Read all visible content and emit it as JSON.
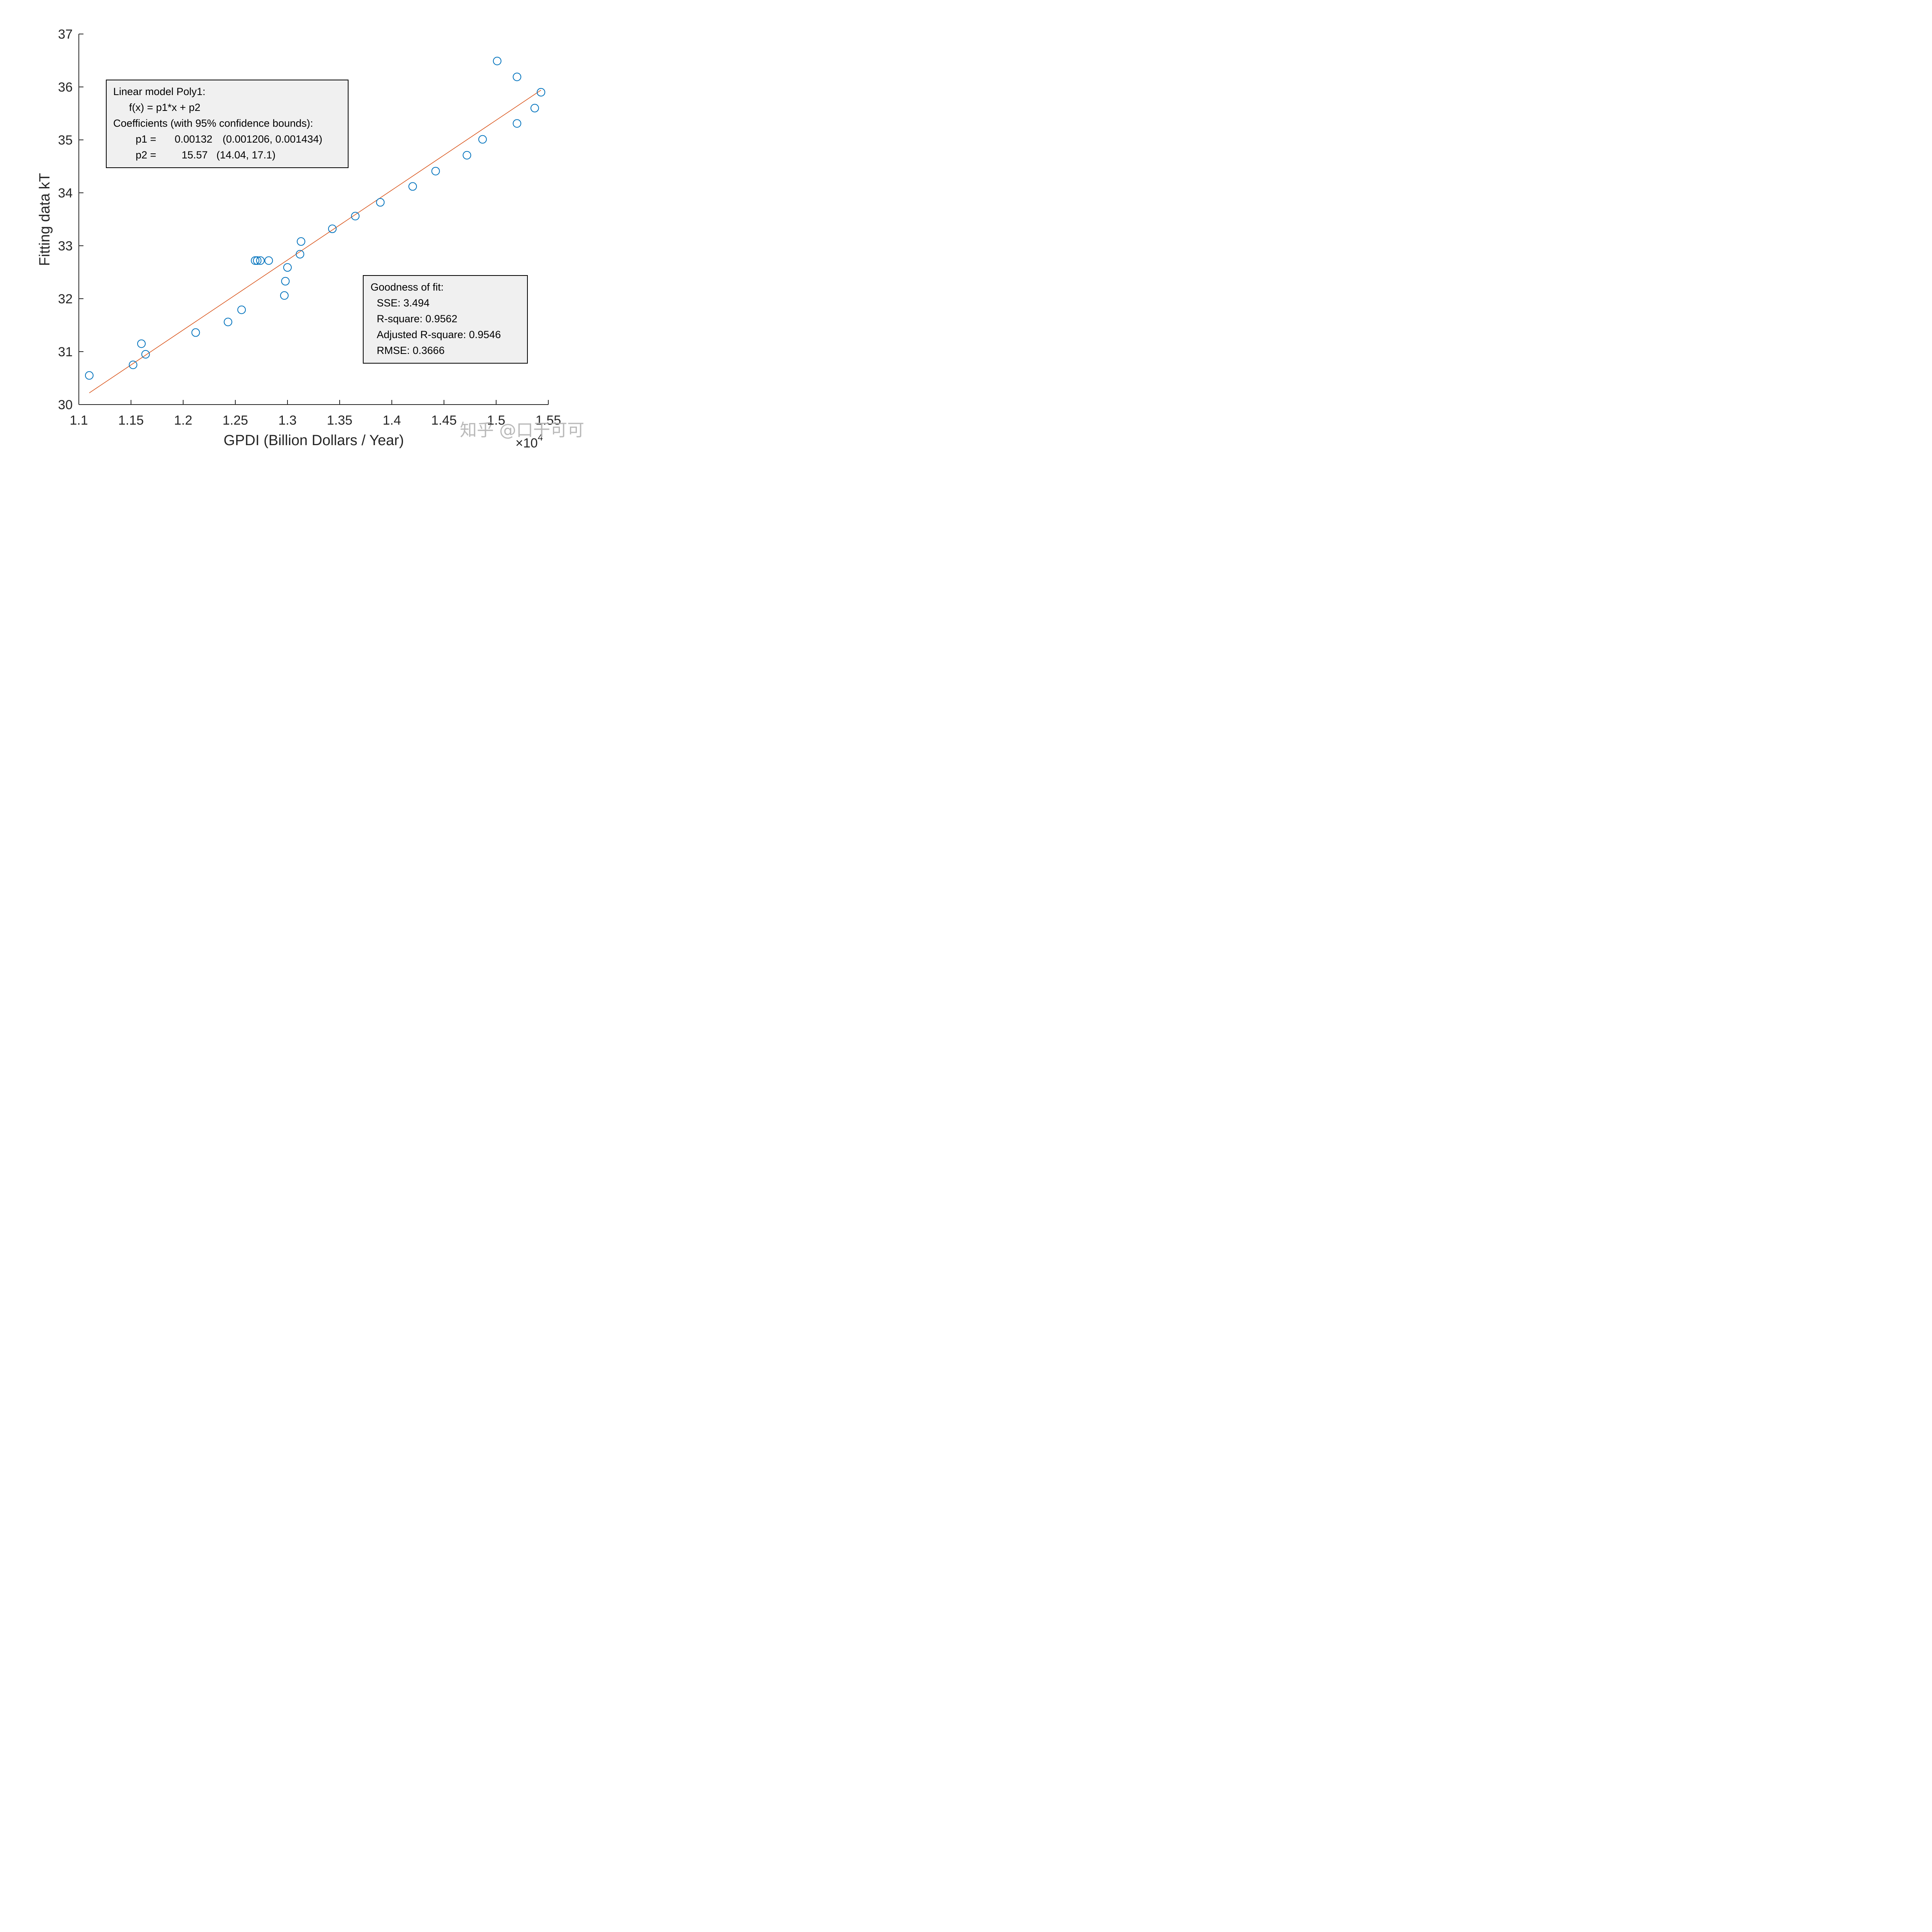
{
  "chart_data": {
    "type": "scatter",
    "title": "",
    "xlabel": "GPDI (Billion Dollars / Year)",
    "ylabel": "Fitting data kT",
    "x_multiplier": "×10^4",
    "xlim": [
      1.1,
      1.55
    ],
    "ylim": [
      30,
      37
    ],
    "x_ticks": [
      "1.1",
      "1.15",
      "1.2",
      "1.25",
      "1.3",
      "1.35",
      "1.4",
      "1.45",
      "1.5",
      "1.55"
    ],
    "y_ticks": [
      "30",
      "31",
      "32",
      "33",
      "34",
      "35",
      "36",
      "37"
    ],
    "grid": false,
    "series": [
      {
        "name": "data",
        "marker": "circle-open",
        "color": "#0072BD",
        "x": [
          1.11,
          1.152,
          1.16,
          1.164,
          1.212,
          1.243,
          1.256,
          1.269,
          1.271,
          1.274,
          1.282,
          1.297,
          1.298,
          1.3,
          1.312,
          1.313,
          1.343,
          1.365,
          1.389,
          1.42,
          1.442,
          1.472,
          1.487,
          1.501,
          1.52,
          1.52,
          1.537,
          1.543
        ],
        "y": [
          30.55,
          30.75,
          31.15,
          30.95,
          31.36,
          31.56,
          31.79,
          32.72,
          32.72,
          32.72,
          32.72,
          32.06,
          32.33,
          32.59,
          32.84,
          33.08,
          33.32,
          33.56,
          33.82,
          34.12,
          34.41,
          34.71,
          35.01,
          36.49,
          36.19,
          35.31,
          35.6,
          35.9
        ]
      },
      {
        "name": "fit",
        "type": "line",
        "color": "#D95319",
        "x": [
          1.11,
          1.543
        ],
        "y": [
          30.22,
          35.94
        ]
      }
    ],
    "annotations": [
      {
        "id": "model-box",
        "lines": [
          "Linear model Poly1:",
          "     f(x) = p1*x + p2",
          "Coefficients (with 95% confidence bounds):",
          "       p1 =     0.00132  (0.001206, 0.001434)",
          "       p2 =       15.57  (14.04, 17.1)"
        ]
      },
      {
        "id": "gof-box",
        "lines": [
          "Goodness of fit:",
          "  SSE: 3.494",
          "  R-square: 0.9562",
          "  Adjusted R-square: 0.9546",
          "  RMSE: 0.3666"
        ]
      }
    ]
  },
  "axes": {
    "xlabel": "GPDI (Billion Dollars / Year)",
    "ylabel": "Fitting data kT",
    "x_multiplier_base": "×10",
    "x_multiplier_exp": "4"
  },
  "model_box": {
    "title": "Linear model Poly1:",
    "equation": "f(x) = p1*x + p2",
    "coeff_header": "Coefficients (with 95% confidence bounds):",
    "p1_label": "p1 =",
    "p1_value": "0.00132",
    "p1_bounds": "(0.001206, 0.001434)",
    "p2_label": "p2 =",
    "p2_value": "15.57",
    "p2_bounds": "(14.04, 17.1)"
  },
  "gof_box": {
    "title": "Goodness of fit:",
    "sse": "SSE: 3.494",
    "rsquare": "R-square: 0.9562",
    "adj_rsquare": "Adjusted R-square: 0.9546",
    "rmse": "RMSE: 0.3666"
  },
  "watermark": "知乎 @口干可可",
  "colors": {
    "marker": "#0072BD",
    "fit_line": "#D95319",
    "axis": "#262626",
    "box_fill": "#F0F0F0",
    "box_border": "#000000"
  }
}
